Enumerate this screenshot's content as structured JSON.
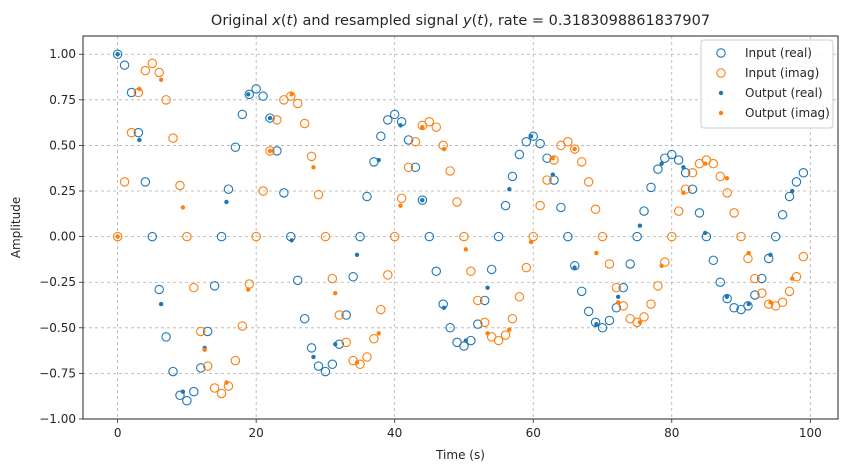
{
  "chart_data": {
    "type": "scatter",
    "title_parts": [
      {
        "text": "Original ",
        "italic": false
      },
      {
        "text": "x",
        "italic": true
      },
      {
        "text": "(",
        "italic": false
      },
      {
        "text": "t",
        "italic": true
      },
      {
        "text": ") and resampled signal ",
        "italic": false
      },
      {
        "text": "y",
        "italic": true
      },
      {
        "text": "(",
        "italic": false
      },
      {
        "text": "t",
        "italic": true
      },
      {
        "text": "), rate = 0.3183098861837907",
        "italic": false
      }
    ],
    "xlabel": "Time (s)",
    "ylabel": "Amplitude",
    "xlim": [
      -5,
      104
    ],
    "ylim": [
      -1.0,
      1.1
    ],
    "xticks": [
      0,
      20,
      40,
      60,
      80,
      100
    ],
    "xtick_labels": [
      "0",
      "20",
      "40",
      "60",
      "80",
      "100"
    ],
    "yticks": [
      -1.0,
      -0.75,
      -0.5,
      -0.25,
      0.0,
      0.25,
      0.5,
      0.75,
      1.0
    ],
    "ytick_labels": [
      "−1.00",
      "−0.75",
      "−0.50",
      "−0.25",
      "0.00",
      "0.25",
      "0.50",
      "0.75",
      "1.00"
    ],
    "grid": true,
    "legend_position": "top-right",
    "colors": {
      "real": "#1f77b4",
      "imag": "#ff7f0e"
    },
    "series": [
      {
        "name": "Input (real)",
        "marker": "open-circle",
        "color": "#1f77b4",
        "x": [
          0,
          1,
          2,
          3,
          4,
          5,
          6,
          7,
          8,
          9,
          10,
          11,
          12,
          13,
          14,
          15,
          16,
          17,
          18,
          19,
          20,
          21,
          22,
          23,
          24,
          25,
          26,
          27,
          28,
          29,
          30,
          31,
          32,
          33,
          34,
          35,
          36,
          37,
          38,
          39,
          40,
          41,
          42,
          43,
          44,
          45,
          46,
          47,
          48,
          49,
          50,
          51,
          52,
          53,
          54,
          55,
          56,
          57,
          58,
          59,
          60,
          61,
          62,
          63,
          64,
          65,
          66,
          67,
          68,
          69,
          70,
          71,
          72,
          73,
          74,
          75,
          76,
          77,
          78,
          79,
          80,
          81,
          82,
          83,
          84,
          85,
          86,
          87,
          88,
          89,
          90,
          91,
          92,
          93,
          94,
          95,
          96,
          97,
          98,
          99
        ],
        "y": [
          1.0,
          0.94,
          0.79,
          0.57,
          0.3,
          0.0,
          -0.29,
          -0.55,
          -0.74,
          -0.87,
          -0.9,
          -0.85,
          -0.72,
          -0.52,
          -0.27,
          0.0,
          0.26,
          0.49,
          0.67,
          0.78,
          0.81,
          0.77,
          0.65,
          0.47,
          0.24,
          0.0,
          -0.24,
          -0.45,
          -0.61,
          -0.71,
          -0.74,
          -0.7,
          -0.59,
          -0.43,
          -0.22,
          0.0,
          0.22,
          0.41,
          0.55,
          0.64,
          0.67,
          0.63,
          0.53,
          0.38,
          0.2,
          0.0,
          -0.19,
          -0.37,
          -0.5,
          -0.58,
          -0.6,
          -0.57,
          -0.48,
          -0.35,
          -0.18,
          0.0,
          0.17,
          0.33,
          0.45,
          0.52,
          0.55,
          0.51,
          0.43,
          0.31,
          0.16,
          0.0,
          -0.16,
          -0.3,
          -0.41,
          -0.47,
          -0.5,
          -0.46,
          -0.39,
          -0.28,
          -0.15,
          0.0,
          0.14,
          0.27,
          0.37,
          0.43,
          0.45,
          0.42,
          0.35,
          0.26,
          0.13,
          0.0,
          -0.13,
          -0.25,
          -0.34,
          -0.39,
          -0.4,
          -0.38,
          -0.32,
          -0.23,
          -0.12,
          0.0,
          0.12,
          0.22,
          0.3,
          0.35
        ]
      },
      {
        "name": "Input (imag)",
        "marker": "open-circle",
        "color": "#ff7f0e",
        "x": [
          0,
          1,
          2,
          3,
          4,
          5,
          6,
          7,
          8,
          9,
          10,
          11,
          12,
          13,
          14,
          15,
          16,
          17,
          18,
          19,
          20,
          21,
          22,
          23,
          24,
          25,
          26,
          27,
          28,
          29,
          30,
          31,
          32,
          33,
          34,
          35,
          36,
          37,
          38,
          39,
          40,
          41,
          42,
          43,
          44,
          45,
          46,
          47,
          48,
          49,
          50,
          51,
          52,
          53,
          54,
          55,
          56,
          57,
          58,
          59,
          60,
          61,
          62,
          63,
          64,
          65,
          66,
          67,
          68,
          69,
          70,
          71,
          72,
          73,
          74,
          75,
          76,
          77,
          78,
          79,
          80,
          81,
          82,
          83,
          84,
          85,
          86,
          87,
          88,
          89,
          90,
          91,
          92,
          93,
          94,
          95,
          96,
          97,
          98,
          99
        ],
        "y": [
          0.0,
          0.3,
          0.57,
          0.79,
          0.91,
          0.95,
          0.9,
          0.75,
          0.54,
          0.28,
          0.0,
          -0.28,
          -0.52,
          -0.71,
          -0.83,
          -0.86,
          -0.82,
          -0.68,
          -0.49,
          -0.26,
          0.0,
          0.25,
          0.47,
          0.64,
          0.75,
          0.77,
          0.73,
          0.62,
          0.44,
          0.23,
          0.0,
          -0.23,
          -0.43,
          -0.58,
          -0.68,
          -0.7,
          -0.66,
          -0.56,
          -0.4,
          -0.21,
          0.0,
          0.21,
          0.38,
          0.52,
          0.61,
          0.63,
          0.6,
          0.5,
          0.36,
          0.19,
          0.0,
          -0.19,
          -0.35,
          -0.47,
          -0.55,
          -0.57,
          -0.54,
          -0.45,
          -0.33,
          -0.17,
          0.0,
          0.17,
          0.31,
          0.42,
          0.5,
          0.52,
          0.48,
          0.41,
          0.3,
          0.15,
          0.0,
          -0.15,
          -0.28,
          -0.38,
          -0.45,
          -0.47,
          -0.44,
          -0.37,
          -0.27,
          -0.14,
          0.0,
          0.14,
          0.26,
          0.35,
          0.4,
          0.42,
          0.4,
          0.33,
          0.24,
          0.13,
          0.0,
          -0.12,
          -0.23,
          -0.31,
          -0.37,
          -0.38,
          -0.36,
          -0.3,
          -0.22,
          -0.11
        ]
      },
      {
        "name": "Output (real)",
        "marker": "dot",
        "color": "#1f77b4",
        "x": [
          0,
          3.14,
          6.28,
          9.42,
          12.57,
          15.71,
          18.85,
          21.99,
          25.13,
          28.27,
          31.42,
          34.56,
          37.7,
          40.84,
          43.98,
          47.12,
          50.27,
          53.41,
          56.55,
          59.69,
          62.83,
          65.97,
          69.12,
          72.26,
          75.4,
          78.54,
          81.68,
          84.82,
          87.96,
          91.11,
          94.25,
          97.39
        ],
        "y": [
          1.0,
          0.53,
          -0.37,
          -0.85,
          -0.61,
          0.19,
          0.78,
          0.65,
          -0.02,
          -0.66,
          -0.59,
          -0.1,
          0.42,
          0.61,
          0.2,
          -0.39,
          -0.57,
          -0.28,
          0.26,
          0.55,
          0.34,
          -0.17,
          -0.48,
          -0.33,
          0.06,
          0.4,
          0.38,
          0.02,
          -0.33,
          -0.37,
          -0.1,
          0.25
        ]
      },
      {
        "name": "Output (imag)",
        "marker": "dot",
        "color": "#ff7f0e",
        "x": [
          0,
          3.14,
          6.28,
          9.42,
          12.57,
          15.71,
          18.85,
          21.99,
          25.13,
          28.27,
          31.42,
          34.56,
          37.7,
          40.84,
          43.98,
          47.12,
          50.27,
          53.41,
          56.55,
          59.69,
          62.83,
          65.97,
          69.12,
          72.26,
          75.4,
          78.54,
          81.68,
          84.82,
          87.96,
          91.11,
          94.25,
          97.39
        ],
        "y": [
          0.0,
          0.81,
          0.86,
          0.16,
          -0.62,
          -0.8,
          -0.29,
          0.47,
          0.78,
          0.38,
          -0.31,
          -0.69,
          -0.53,
          0.17,
          0.6,
          0.48,
          -0.07,
          -0.53,
          -0.51,
          -0.03,
          0.43,
          0.48,
          -0.09,
          -0.36,
          -0.47,
          -0.16,
          0.24,
          0.4,
          0.32,
          -0.09,
          -0.36,
          -0.23
        ]
      }
    ]
  }
}
